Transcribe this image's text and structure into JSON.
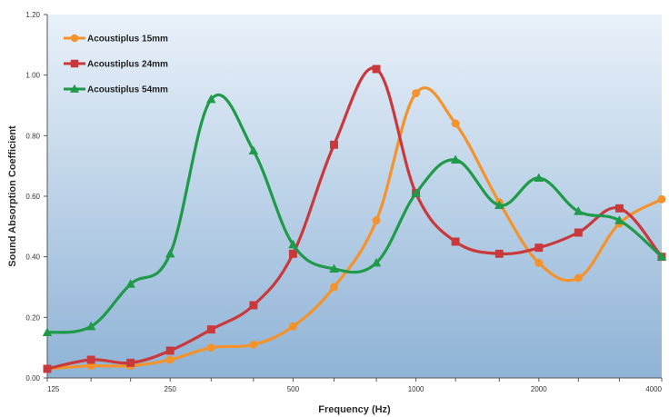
{
  "chart_data": {
    "type": "line",
    "xlabel": "Frequency (Hz)",
    "ylabel": "Sound Absorption Coefficient",
    "xscale": "log",
    "x_ticks": [
      125,
      250,
      500,
      1000,
      2000,
      4000
    ],
    "x_tick_labels": [
      "125",
      "250",
      "500",
      "1000",
      "2000",
      "4000"
    ],
    "y_ticks": [
      0,
      0.2,
      0.4,
      0.6,
      0.8,
      1.0,
      1.2
    ],
    "y_tick_labels": [
      "0.00",
      "0.20",
      "0.40",
      "0.60",
      "0.80",
      "1.00",
      "1.20"
    ],
    "xlim": [
      125,
      4000
    ],
    "ylim": [
      0,
      1.2
    ],
    "grid": false,
    "legend_position": "top-left",
    "x": [
      125,
      160,
      200,
      250,
      315,
      400,
      500,
      630,
      800,
      1000,
      1250,
      1600,
      2000,
      2500,
      3150,
      4000
    ],
    "series": [
      {
        "name": "Acoustiplus 15mm",
        "color": "#f5922a",
        "marker": "circle",
        "values": [
          0.03,
          0.04,
          0.04,
          0.06,
          0.1,
          0.11,
          0.17,
          0.3,
          0.52,
          0.94,
          0.84,
          0.58,
          0.38,
          0.33,
          0.51,
          0.59
        ]
      },
      {
        "name": "Acoustiplus 24mm",
        "color": "#c9383a",
        "marker": "square",
        "values": [
          0.03,
          0.06,
          0.05,
          0.09,
          0.16,
          0.24,
          0.41,
          0.77,
          1.02,
          0.61,
          0.45,
          0.41,
          0.43,
          0.48,
          0.56,
          0.4
        ]
      },
      {
        "name": "Acoustiplus 54mm",
        "color": "#1e9a48",
        "marker": "triangle",
        "values": [
          0.15,
          0.17,
          0.31,
          0.41,
          0.92,
          0.75,
          0.44,
          0.36,
          0.38,
          0.61,
          0.72,
          0.57,
          0.66,
          0.55,
          0.52,
          0.4
        ]
      }
    ],
    "background_gradient": [
      "#e9f1f9",
      "#8fb3d6"
    ],
    "axis_color": "#555555"
  }
}
